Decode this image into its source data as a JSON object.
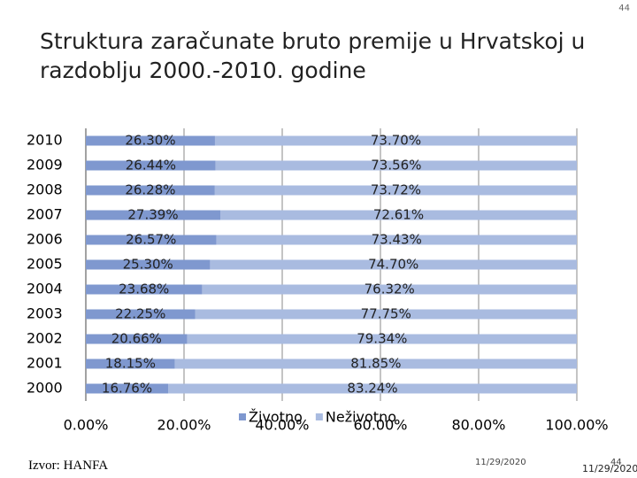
{
  "page_number": "44",
  "source": "Izvor: HANFA",
  "date": "11/29/2020",
  "footer_date": "11/29/2020",
  "footer_page": "44",
  "chart_data": {
    "type": "stacked-bar-horizontal",
    "title": "Struktura zaračunate bruto premije u Hrvatskoj u razdoblju 2000.-2010. godine",
    "categories": [
      "2010",
      "2009",
      "2008",
      "2007",
      "2006",
      "2005",
      "2004",
      "2003",
      "2002",
      "2001",
      "2000"
    ],
    "series": [
      {
        "name": "Životno",
        "color": "#7f98cf",
        "values": [
          26.3,
          26.44,
          26.28,
          27.39,
          26.57,
          25.3,
          23.68,
          22.25,
          20.66,
          18.15,
          16.76
        ],
        "value_labels": [
          "26.30%",
          "26.44%",
          "26.28%",
          "27.39%",
          "26.57%",
          "25.30%",
          "23.68%",
          "22.25%",
          "20.66%",
          "18.15%",
          "16.76%"
        ]
      },
      {
        "name": "Neživotno",
        "color": "#a9bbe0",
        "values": [
          73.7,
          73.56,
          73.72,
          72.61,
          73.43,
          74.7,
          76.32,
          77.75,
          79.34,
          81.85,
          83.24
        ],
        "value_labels": [
          "73.70%",
          "73.56%",
          "73.72%",
          "72.61%",
          "73.43%",
          "74.70%",
          "76.32%",
          "77.75%",
          "79.34%",
          "81.85%",
          "83.24%"
        ]
      }
    ],
    "xlim": [
      0,
      100
    ],
    "xticks": [
      {
        "value": 0,
        "label": "0.00%"
      },
      {
        "value": 20,
        "label": "20.00%"
      },
      {
        "value": 40,
        "label": "40.00%"
      },
      {
        "value": 60,
        "label": "60.00%"
      },
      {
        "value": 80,
        "label": "80.00%"
      },
      {
        "value": 100,
        "label": "100.00%"
      }
    ],
    "grid": true,
    "legend": "bottom"
  }
}
